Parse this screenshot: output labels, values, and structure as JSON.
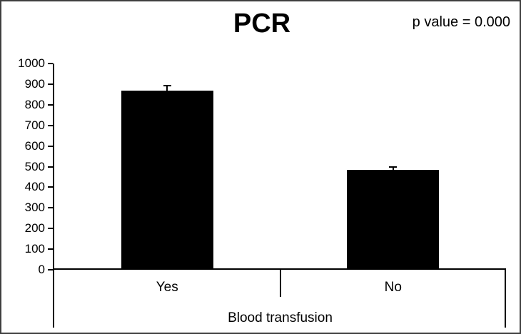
{
  "frame": {
    "border_color": "#3f3f3f",
    "background_color": "#ffffff"
  },
  "header": {
    "title": "PCR",
    "p_value_text": "p value = 0.000"
  },
  "chart_data": {
    "type": "bar",
    "title": "PCR",
    "annotation": "p value = 0.000",
    "categories": [
      "Yes",
      "No"
    ],
    "values": [
      870,
      485
    ],
    "error_plus": [
      20,
      11
    ],
    "xlabel": "Blood transfusion",
    "ylabel": "",
    "ylim": [
      0,
      1000
    ],
    "ytick_step": 100,
    "ytick_labels": [
      "0",
      "100",
      "200",
      "300",
      "400",
      "500",
      "600",
      "700",
      "800",
      "900",
      "1000"
    ],
    "bar_color": "#000000",
    "axis_color": "#000000",
    "grid": false,
    "legend": false
  }
}
